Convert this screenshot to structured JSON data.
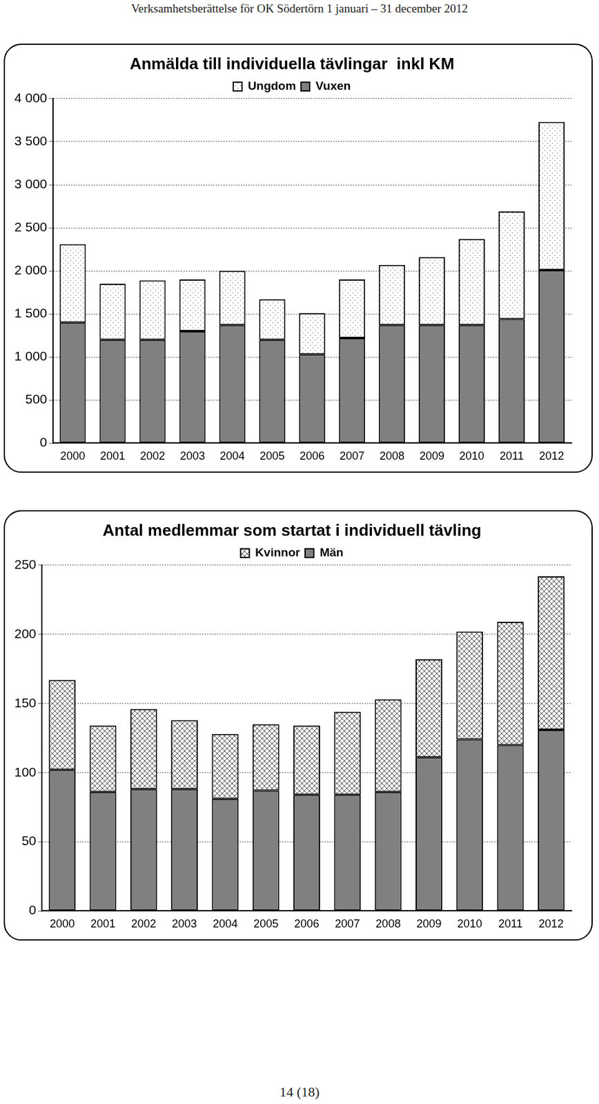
{
  "page": {
    "header": "Verksamhetsberättelse för OK Södertörn 1 januari – 31 december 2012",
    "footer": "14 (18)"
  },
  "chart_data": [
    {
      "type": "bar",
      "title": "Anmälda till individuella tävlingar  inkl KM",
      "stacked": true,
      "grid": true,
      "legend": "top",
      "categories": [
        "2000",
        "2001",
        "2002",
        "2003",
        "2004",
        "2005",
        "2006",
        "2007",
        "2008",
        "2009",
        "2010",
        "2011",
        "2012"
      ],
      "series": [
        {
          "name": "Vuxen",
          "color": "#808080",
          "values": [
            1400,
            1200,
            1200,
            1300,
            1370,
            1200,
            1030,
            1220,
            1370,
            1370,
            1370,
            1440,
            2010
          ]
        },
        {
          "name": "Ungdom",
          "color": "#ffffff",
          "values": [
            910,
            650,
            690,
            600,
            630,
            470,
            480,
            680,
            700,
            790,
            1000,
            1250,
            1720
          ]
        }
      ],
      "ylim": [
        0,
        4000
      ],
      "yticks": [
        0,
        500,
        {
          "value": 1000,
          "label": "1 000"
        },
        {
          "value": 1500,
          "label": "1 500"
        },
        {
          "value": 2000,
          "label": "2 000"
        },
        {
          "value": 2500,
          "label": "2 500"
        },
        {
          "value": 3000,
          "label": "3 000"
        },
        {
          "value": 3500,
          "label": "3 500"
        },
        {
          "value": 4000,
          "label": "4 000"
        }
      ]
    },
    {
      "type": "bar",
      "title": "Antal medlemmar som startat i individuell tävling",
      "stacked": true,
      "grid": true,
      "legend": "top",
      "categories": [
        "2000",
        "2001",
        "2002",
        "2003",
        "2004",
        "2005",
        "2006",
        "2007",
        "2008",
        "2009",
        "2010",
        "2011",
        "2012"
      ],
      "series": [
        {
          "name": "Män",
          "color": "#808080",
          "values": [
            102,
            86,
            88,
            88,
            81,
            87,
            84,
            84,
            86,
            111,
            124,
            120,
            131
          ]
        },
        {
          "name": "Kvinnor",
          "color": "#ffffff",
          "values": [
            65,
            48,
            58,
            50,
            47,
            48,
            50,
            60,
            67,
            71,
            78,
            89,
            111
          ]
        }
      ],
      "ylim": [
        0,
        250
      ],
      "yticks": [
        0,
        50,
        100,
        150,
        200,
        250
      ]
    }
  ]
}
